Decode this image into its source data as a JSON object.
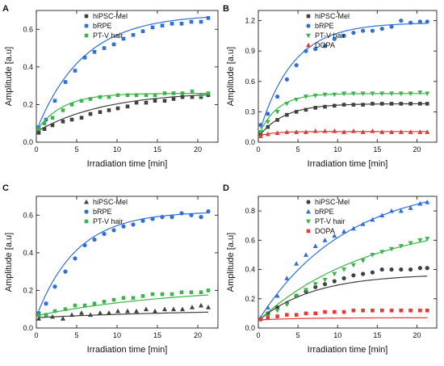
{
  "chart_data": [
    {
      "panel": "A",
      "type": "scatter",
      "xlabel": "Irradiation time [min]",
      "ylabel": "Amplitude [a.u]",
      "xlim": [
        0,
        22.5
      ],
      "ylim": [
        0,
        0.7
      ],
      "xticks": [
        0,
        5,
        10,
        15,
        20
      ],
      "yticks": [
        0.0,
        0.2,
        0.4,
        0.6
      ],
      "legend_position": "top-left",
      "series": [
        {
          "name": "hiPSC-Mel",
          "color": "#404040",
          "marker": "square",
          "x": [
            0.3,
            1.0,
            2.0,
            3.3,
            4.4,
            5.6,
            6.7,
            7.9,
            9.0,
            10.1,
            11.3,
            12.4,
            13.6,
            14.7,
            15.9,
            17.0,
            18.1,
            19.3,
            20.4,
            21.3
          ],
          "y": [
            0.05,
            0.07,
            0.09,
            0.11,
            0.12,
            0.13,
            0.15,
            0.16,
            0.17,
            0.18,
            0.19,
            0.21,
            0.21,
            0.22,
            0.22,
            0.23,
            0.24,
            0.24,
            0.24,
            0.25
          ],
          "fit": {
            "a": 0.27,
            "b": 0.055,
            "tau": 8.5
          }
        },
        {
          "name": "bRPE",
          "color": "#2f6fd6",
          "marker": "square",
          "x": [
            0.3,
            1.2,
            2.3,
            3.6,
            4.8,
            6.0,
            7.2,
            8.4,
            9.6,
            10.8,
            12.0,
            13.2,
            14.4,
            15.6,
            16.8,
            18.0,
            19.2,
            20.4,
            21.3
          ],
          "y": [
            0.08,
            0.12,
            0.22,
            0.32,
            0.38,
            0.45,
            0.48,
            0.5,
            0.52,
            0.55,
            0.57,
            0.59,
            0.61,
            0.62,
            0.63,
            0.63,
            0.64,
            0.64,
            0.66
          ],
          "fit": {
            "a": 0.68,
            "b": 0.06,
            "tau": 5.8
          }
        },
        {
          "name": "PT-V hair",
          "color": "#3cb44b",
          "marker": "square",
          "x": [
            0.3,
            1.0,
            2.0,
            3.3,
            4.4,
            5.6,
            6.7,
            7.9,
            9.0,
            10.1,
            11.3,
            12.4,
            13.6,
            14.7,
            15.9,
            17.0,
            18.1,
            19.3,
            20.4,
            21.3
          ],
          "y": [
            0.07,
            0.1,
            0.13,
            0.17,
            0.2,
            0.22,
            0.23,
            0.24,
            0.24,
            0.25,
            0.25,
            0.25,
            0.25,
            0.25,
            0.26,
            0.26,
            0.26,
            0.27,
            0.25,
            0.26
          ],
          "fit": {
            "a": 0.26,
            "b": 0.06,
            "tau": 3.2
          }
        }
      ]
    },
    {
      "panel": "B",
      "type": "scatter",
      "xlabel": "Irradiation time [min]",
      "ylabel": "Amplitude [a.u]",
      "xlim": [
        0,
        22.5
      ],
      "ylim": [
        0,
        1.3
      ],
      "xticks": [
        0,
        5,
        10,
        15,
        20
      ],
      "yticks": [
        0.0,
        0.3,
        0.6,
        0.9,
        1.2
      ],
      "legend_position": "top-left",
      "series": [
        {
          "name": "hiPSC-Mel",
          "color": "#404040",
          "marker": "square",
          "x": [
            0.3,
            1.2,
            2.4,
            3.6,
            4.8,
            6.0,
            7.2,
            8.4,
            9.6,
            10.8,
            12.0,
            13.2,
            14.4,
            15.6,
            16.8,
            18.0,
            19.2,
            20.4,
            21.3
          ],
          "y": [
            0.08,
            0.15,
            0.22,
            0.27,
            0.3,
            0.32,
            0.34,
            0.35,
            0.36,
            0.37,
            0.37,
            0.37,
            0.38,
            0.38,
            0.38,
            0.38,
            0.38,
            0.38,
            0.38
          ],
          "fit": {
            "a": 0.38,
            "b": 0.05,
            "tau": 3.2
          }
        },
        {
          "name": "bRPE",
          "color": "#2f6fd6",
          "marker": "circle",
          "x": [
            0.3,
            1.2,
            2.4,
            3.6,
            4.8,
            6.0,
            7.2,
            8.4,
            9.6,
            10.8,
            12.0,
            13.2,
            14.4,
            15.6,
            16.8,
            18.0,
            19.2,
            20.4,
            21.3
          ],
          "y": [
            0.17,
            0.28,
            0.45,
            0.62,
            0.76,
            0.9,
            0.92,
            0.95,
            1.02,
            1.05,
            1.08,
            1.1,
            1.1,
            1.12,
            1.14,
            1.2,
            1.18,
            1.19,
            1.19
          ],
          "fit": {
            "a": 1.18,
            "b": 0.06,
            "tau": 4.2
          }
        },
        {
          "name": "PT-V hair",
          "color": "#3cb44b",
          "marker": "triangle-down",
          "x": [
            0.3,
            1.2,
            2.4,
            3.6,
            4.8,
            6.0,
            7.2,
            8.4,
            9.6,
            10.8,
            12.0,
            13.2,
            14.4,
            15.6,
            16.8,
            18.0,
            19.2,
            20.4,
            21.3
          ],
          "y": [
            0.1,
            0.2,
            0.3,
            0.38,
            0.42,
            0.45,
            0.46,
            0.47,
            0.47,
            0.48,
            0.48,
            0.48,
            0.48,
            0.48,
            0.48,
            0.48,
            0.48,
            0.49,
            0.48
          ],
          "fit": {
            "a": 0.48,
            "b": 0.06,
            "tau": 2.3
          }
        },
        {
          "name": "DOPA",
          "color": "#e53935",
          "marker": "triangle-up",
          "x": [
            0.3,
            1.2,
            2.4,
            3.6,
            4.8,
            6.0,
            7.2,
            8.4,
            9.6,
            10.8,
            12.0,
            13.2,
            14.4,
            15.6,
            16.8,
            18.0,
            19.2,
            20.4,
            21.3
          ],
          "y": [
            0.06,
            0.08,
            0.09,
            0.1,
            0.1,
            0.1,
            0.11,
            0.11,
            0.11,
            0.1,
            0.11,
            0.1,
            0.11,
            0.1,
            0.1,
            0.1,
            0.1,
            0.1,
            0.1
          ],
          "fit": {
            "a": 0.105,
            "b": 0.06,
            "tau": 1.8
          }
        }
      ]
    },
    {
      "panel": "C",
      "type": "scatter",
      "xlabel": "Irradiation time [min]",
      "ylabel": "Amplitude [a.u]",
      "xlim": [
        0,
        22.5
      ],
      "ylim": [
        0,
        0.7
      ],
      "xticks": [
        0,
        5,
        10,
        15,
        20
      ],
      "yticks": [
        0.0,
        0.2,
        0.4,
        0.6
      ],
      "legend_position": "top-left",
      "series": [
        {
          "name": "hiPSC-Mel",
          "color": "#404040",
          "marker": "triangle-up",
          "x": [
            0.3,
            2.0,
            3.3,
            4.4,
            5.6,
            6.7,
            7.9,
            9.0,
            10.1,
            11.3,
            12.4,
            13.6,
            14.7,
            15.9,
            17.0,
            18.1,
            19.3,
            20.4,
            21.3
          ],
          "y": [
            0.05,
            0.06,
            0.05,
            0.07,
            0.08,
            0.07,
            0.08,
            0.08,
            0.09,
            0.09,
            0.09,
            0.1,
            0.09,
            0.1,
            0.1,
            0.1,
            0.11,
            0.12,
            0.11
          ],
          "fit": {
            "a": 0.1,
            "b": 0.055,
            "tau": 20
          }
        },
        {
          "name": "bRPE",
          "color": "#2f6fd6",
          "marker": "circle",
          "x": [
            0.3,
            1.2,
            2.3,
            3.6,
            4.8,
            6.0,
            7.2,
            8.4,
            9.6,
            10.8,
            12.0,
            13.2,
            14.4,
            15.6,
            16.8,
            18.0,
            19.2,
            20.4,
            21.3
          ],
          "y": [
            0.08,
            0.13,
            0.22,
            0.3,
            0.37,
            0.44,
            0.47,
            0.5,
            0.52,
            0.54,
            0.55,
            0.57,
            0.58,
            0.59,
            0.59,
            0.61,
            0.6,
            0.59,
            0.62
          ],
          "fit": {
            "a": 0.62,
            "b": 0.06,
            "tau": 5.0
          }
        },
        {
          "name": "PT-V hair",
          "color": "#3cb44b",
          "marker": "square",
          "x": [
            0.3,
            1.2,
            2.3,
            3.6,
            4.8,
            6.0,
            7.2,
            8.4,
            9.6,
            10.8,
            12.0,
            13.2,
            14.4,
            15.6,
            16.8,
            18.0,
            19.2,
            20.4,
            21.3
          ],
          "y": [
            0.07,
            0.07,
            0.09,
            0.1,
            0.12,
            0.12,
            0.13,
            0.14,
            0.15,
            0.16,
            0.16,
            0.17,
            0.18,
            0.18,
            0.18,
            0.19,
            0.19,
            0.19,
            0.2
          ],
          "fit": {
            "a": 0.22,
            "b": 0.065,
            "tau": 17
          }
        }
      ]
    },
    {
      "panel": "D",
      "type": "scatter",
      "xlabel": "Irradiation time [min]",
      "ylabel": "Amplitude [a.u]",
      "xlim": [
        0,
        22.5
      ],
      "ylim": [
        0,
        0.9
      ],
      "xticks": [
        0,
        5,
        10,
        15,
        20
      ],
      "yticks": [
        0.0,
        0.2,
        0.4,
        0.6,
        0.8
      ],
      "legend_position": "top-left",
      "series": [
        {
          "name": "hiPSC-Mel",
          "color": "#404040",
          "marker": "circle",
          "x": [
            0.3,
            1.2,
            2.4,
            3.6,
            4.8,
            6.0,
            7.2,
            8.4,
            9.6,
            10.8,
            12.0,
            13.2,
            14.4,
            15.6,
            16.8,
            18.0,
            19.2,
            20.4,
            21.3
          ],
          "y": [
            0.06,
            0.1,
            0.14,
            0.17,
            0.22,
            0.25,
            0.28,
            0.3,
            0.32,
            0.34,
            0.36,
            0.37,
            0.38,
            0.4,
            0.4,
            0.4,
            0.4,
            0.41,
            0.41
          ],
          "fit": {
            "a": 0.37,
            "b": 0.05,
            "tau": 7.0
          }
        },
        {
          "name": "bRPE",
          "color": "#2f6fd6",
          "marker": "triangle-up",
          "x": [
            0.3,
            1.2,
            2.4,
            3.6,
            4.8,
            6.0,
            7.2,
            8.4,
            9.6,
            10.8,
            12.0,
            13.2,
            14.4,
            15.6,
            16.8,
            18.0,
            19.2,
            20.4,
            21.3
          ],
          "y": [
            0.07,
            0.14,
            0.22,
            0.34,
            0.44,
            0.5,
            0.56,
            0.6,
            0.63,
            0.66,
            0.68,
            0.71,
            0.74,
            0.77,
            0.8,
            0.8,
            0.82,
            0.85,
            0.86
          ],
          "fit": {
            "a": 1.0,
            "b": 0.05,
            "tau": 11
          }
        },
        {
          "name": "PT-V hair",
          "color": "#3cb44b",
          "marker": "triangle-down",
          "x": [
            0.3,
            1.2,
            2.4,
            3.6,
            4.8,
            6.0,
            7.2,
            8.4,
            9.6,
            10.8,
            12.0,
            13.2,
            14.4,
            15.6,
            16.8,
            18.0,
            19.2,
            20.4,
            21.3
          ],
          "y": [
            0.06,
            0.08,
            0.12,
            0.16,
            0.22,
            0.26,
            0.3,
            0.33,
            0.37,
            0.4,
            0.43,
            0.46,
            0.5,
            0.52,
            0.54,
            0.56,
            0.58,
            0.6,
            0.61
          ],
          "fit": {
            "a": 0.75,
            "b": 0.05,
            "tau": 14
          }
        },
        {
          "name": "DOPA",
          "color": "#e53935",
          "marker": "square",
          "x": [
            0.3,
            1.2,
            2.4,
            3.6,
            4.8,
            6.0,
            7.2,
            8.4,
            9.6,
            10.8,
            12.0,
            13.2,
            14.4,
            15.6,
            16.8,
            18.0,
            19.2,
            20.4,
            21.3
          ],
          "y": [
            0.06,
            0.07,
            0.08,
            0.09,
            0.09,
            0.1,
            0.1,
            0.11,
            0.11,
            0.11,
            0.12,
            0.12,
            0.12,
            0.12,
            0.12,
            0.12,
            0.12,
            0.12,
            0.12
          ],
          "fit": {
            "a": 0.07,
            "b": 0.055,
            "tau": 5.0
          }
        }
      ]
    }
  ]
}
